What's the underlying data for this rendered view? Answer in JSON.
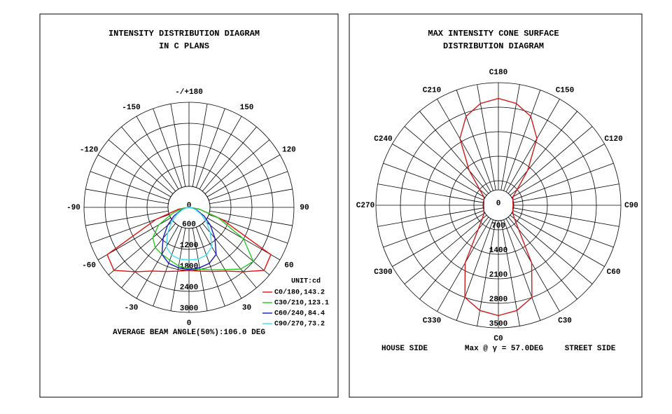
{
  "chart_data": [
    {
      "type": "polar-half",
      "title": [
        "INTENSITY DISTRIBUTION DIAGRAM",
        "IN C PLANS"
      ],
      "rlim": [
        0,
        3000
      ],
      "rticks": [
        0,
        600,
        1200,
        1800,
        2400,
        3000
      ],
      "angleticks": [
        {
          "value": 180,
          "label": "-/+180"
        },
        150,
        120,
        90,
        60,
        30,
        0,
        -30,
        -60,
        -90,
        -120,
        -150
      ],
      "x": [
        -90,
        -80,
        -70,
        -60,
        -50,
        -40,
        -30,
        -20,
        -10,
        0,
        10,
        20,
        30,
        40,
        50,
        60,
        70,
        80,
        90
      ],
      "legend_title": "UNIT:cd",
      "series": [
        {
          "name": "C0/180,143.2",
          "color": "#e01010",
          "values": [
            0,
            300,
            1000,
            2700,
            2800,
            2400,
            2100,
            1950,
            1850,
            1800,
            1850,
            1950,
            2100,
            2400,
            2800,
            2700,
            1000,
            300,
            0
          ]
        },
        {
          "name": "C30/210,123.1",
          "color": "#22cc22",
          "values": [
            0,
            200,
            500,
            1000,
            1350,
            1500,
            1550,
            1600,
            1700,
            1750,
            1800,
            1900,
            2050,
            2300,
            2400,
            1800,
            900,
            300,
            0
          ]
        },
        {
          "name": "C60/240,84.4",
          "color": "#1818c0",
          "values": [
            0,
            100,
            250,
            500,
            800,
            1150,
            1550,
            1700,
            1750,
            1780,
            1750,
            1700,
            1550,
            1150,
            800,
            500,
            250,
            100,
            0
          ]
        },
        {
          "name": "C90/270,73.2",
          "color": "#40dff0",
          "values": [
            0,
            80,
            200,
            400,
            650,
            950,
            1300,
            1450,
            1500,
            1500,
            1500,
            1450,
            1300,
            950,
            650,
            400,
            200,
            80,
            0
          ]
        }
      ],
      "footer": "AVERAGE BEAM ANGLE(50%):106.0 DEG"
    },
    {
      "type": "polar-full",
      "title": [
        "MAX INTENSITY CONE SURFACE",
        "DISTRIBUTION DIAGRAM"
      ],
      "rlim": [
        0,
        3500
      ],
      "rticks": [
        0,
        700,
        1400,
        2100,
        2800,
        3500
      ],
      "angleticks": [
        {
          "value": 0,
          "label": "C0"
        },
        {
          "value": 30,
          "label": "C30"
        },
        {
          "value": 60,
          "label": "C60"
        },
        {
          "value": 90,
          "label": "C90"
        },
        {
          "value": 120,
          "label": "C120"
        },
        {
          "value": 150,
          "label": "C150"
        },
        {
          "value": 180,
          "label": "C180"
        },
        {
          "value": 210,
          "label": "C210"
        },
        {
          "value": 240,
          "label": "C240"
        },
        {
          "value": 270,
          "label": "C270"
        },
        {
          "value": 300,
          "label": "C300"
        },
        {
          "value": 330,
          "label": "C330"
        }
      ],
      "x": [
        0,
        10,
        20,
        30,
        40,
        50,
        60,
        70,
        80,
        90,
        100,
        110,
        120,
        130,
        140,
        150,
        160,
        170,
        180,
        190,
        200,
        210,
        220,
        230,
        240,
        250,
        260,
        270,
        280,
        290,
        300,
        310,
        320,
        330,
        340,
        350
      ],
      "series": [
        {
          "color": "#d01818",
          "values": [
            3150,
            3050,
            2800,
            1900,
            900,
            600,
            480,
            440,
            420,
            420,
            420,
            440,
            480,
            700,
            1300,
            2200,
            2700,
            2950,
            3050,
            2950,
            2700,
            2200,
            1300,
            700,
            480,
            440,
            420,
            420,
            420,
            440,
            480,
            600,
            900,
            1900,
            2800,
            3050
          ]
        }
      ],
      "footer_left": "HOUSE SIDE",
      "footer_mid": "Max @ γ = 57.0DEG",
      "footer_right": "STREET SIDE"
    }
  ]
}
